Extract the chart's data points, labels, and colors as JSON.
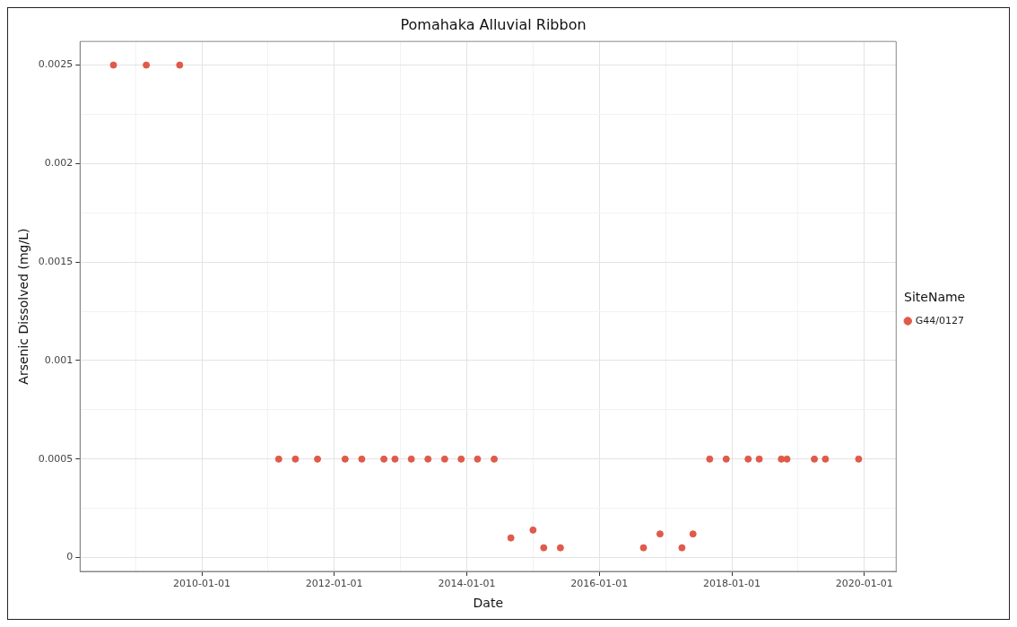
{
  "chart_data": {
    "type": "scatter",
    "title": "Pomahaka Alluvial Ribbon",
    "xlabel": "Date",
    "ylabel": "Arsenic Dissolved (mg/L)",
    "legend_title": "SiteName",
    "legend": "right",
    "grid": true,
    "marker": "circle",
    "xlim": [
      "2008-03",
      "2020-06-25"
    ],
    "xticks": [
      {
        "value": "2009-01-01",
        "label": null
      },
      "2010-01-01",
      {
        "value": "2011-01-01",
        "label": null
      },
      "2012-01-01",
      {
        "value": "2013-01-01",
        "label": null
      },
      "2014-01-01",
      {
        "value": "2015-01-01",
        "label": null
      },
      "2016-01-01",
      {
        "value": "2017-01-01",
        "label": null
      },
      "2018-01-01",
      {
        "value": "2019-01-01",
        "label": null
      },
      "2020-01-01"
    ],
    "ylim": [
      -7e-05,
      0.00262
    ],
    "yticks": [
      0,
      {
        "value": 0.00025,
        "label": null
      },
      0.0005,
      {
        "value": 0.00075,
        "label": null
      },
      0.001,
      {
        "value": 0.00125,
        "label": null
      },
      0.0015,
      {
        "value": 0.00175,
        "label": null
      },
      0.002,
      {
        "value": 0.00225,
        "label": null
      },
      0.0025
    ],
    "series": [
      {
        "name": "G44/0127",
        "color": "#e05a4a",
        "x": [
          "2008-09",
          "2009-03",
          "2009-09",
          "2011-03",
          "2011-06",
          "2011-10",
          "2012-03",
          "2012-06",
          "2012-10",
          "2012-12",
          "2013-03",
          "2013-06",
          "2013-09",
          "2013-12",
          "2014-03",
          "2014-06",
          "2014-09",
          "2015-01",
          "2015-03",
          "2015-06",
          "2016-09",
          "2016-12",
          "2017-04",
          "2017-06",
          "2017-09",
          "2017-12",
          "2018-04",
          "2018-06",
          "2018-10",
          "2018-11",
          "2019-04",
          "2019-06",
          "2019-12"
        ],
        "values": [
          0.0025,
          0.0025,
          0.0025,
          0.0005,
          0.0005,
          0.0005,
          0.0005,
          0.0005,
          0.0005,
          0.0005,
          0.0005,
          0.0005,
          0.0005,
          0.0005,
          0.0005,
          0.0005,
          0.0001,
          0.00014,
          5e-05,
          5e-05,
          5e-05,
          0.00012,
          5e-05,
          0.00012,
          0.0005,
          0.0005,
          0.0005,
          0.0005,
          0.0005,
          0.0005,
          0.0005,
          0.0005,
          0.0005
        ]
      }
    ]
  }
}
